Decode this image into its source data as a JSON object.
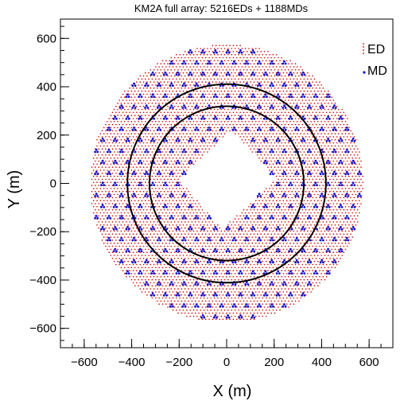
{
  "chart_data": {
    "type": "scatter",
    "title": "KM2A full array: 5216EDs + 1188MDs",
    "xlabel": "X (m)",
    "ylabel": "Y (m)",
    "xlim": [
      -700,
      700
    ],
    "ylim": [
      -680,
      680
    ],
    "x_ticks": [
      -600,
      -400,
      -200,
      0,
      200,
      400,
      600
    ],
    "y_ticks": [
      -600,
      -400,
      -200,
      0,
      200,
      400,
      600
    ],
    "x_tick_labels": [
      "−600",
      "−400",
      "−200",
      "0",
      "200",
      "400",
      "600"
    ],
    "y_tick_labels": [
      "−600",
      "−400",
      "−200",
      "0",
      "200",
      "400",
      "600"
    ],
    "grid": false,
    "legend_position": "top-right",
    "series": [
      {
        "name": "ED",
        "count": 5216,
        "color": "#cc0000",
        "region": {
          "shape": "disk",
          "center": [
            0,
            0
          ],
          "radius": 575
        },
        "exclusion": {
          "shape": "rotated-square",
          "center": [
            0,
            20
          ],
          "corners": [
            [
              -200,
              20
            ],
            [
              20,
              220
            ],
            [
              210,
              20
            ],
            [
              -20,
              -190
            ]
          ]
        }
      },
      {
        "name": "MD",
        "count": 1188,
        "color": "#1010cc",
        "region": {
          "shape": "disk",
          "center": [
            0,
            0
          ],
          "radius": 575
        },
        "exclusion": {
          "shape": "rotated-square",
          "center": [
            0,
            20
          ],
          "corners": [
            [
              -200,
              20
            ],
            [
              20,
              220
            ],
            [
              210,
              20
            ],
            [
              -20,
              -190
            ]
          ]
        }
      }
    ],
    "circles": [
      {
        "center": [
          0,
          0
        ],
        "radius": 325,
        "color": "#000000"
      },
      {
        "center": [
          0,
          0
        ],
        "radius": 418,
        "color": "#000000"
      }
    ]
  }
}
